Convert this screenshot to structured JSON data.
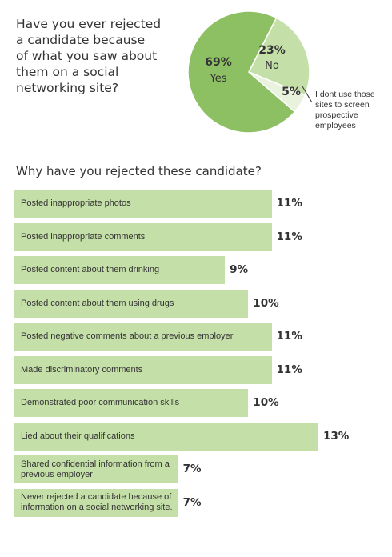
{
  "pie_section": {
    "question": "Have you ever rejected\na candidate because\nof what you saw about\nthem on a social\nnetworking site?",
    "colors": {
      "yes": "#8dc063",
      "no": "#c5dfa9",
      "other": "#e8f2dc",
      "border": "#ffffff"
    }
  },
  "bars_section": {
    "title": "Why have you rejected these candidate?",
    "bar_color": "#c5dfa9"
  },
  "chart_data": [
    {
      "type": "pie",
      "title": "Have you ever rejected a candidate because of what you saw about them on a social networking site?",
      "slices": [
        {
          "label": "Yes",
          "value": 69,
          "value_label": "69%"
        },
        {
          "label": "No",
          "value": 23,
          "value_label": "23%"
        },
        {
          "label": "I dont use those sites to screen prospective employees",
          "value": 5,
          "value_label": "5%"
        }
      ]
    },
    {
      "type": "bar",
      "orientation": "horizontal",
      "title": "Why have you rejected these candidate?",
      "categories": [
        "Posted inappropriate photos",
        "Posted inappropriate comments",
        "Posted content about them drinking",
        "Posted content about them using drugs",
        "Posted negative comments about a previous employer",
        "Made discriminatory comments",
        "Demonstrated poor communication skills",
        "Lied about their qualifications",
        "Shared confidential information from a previous employer",
        "Never rejected a candidate because of information on a social networking site."
      ],
      "values": [
        11,
        11,
        9,
        10,
        11,
        11,
        10,
        13,
        7,
        7
      ],
      "value_labels": [
        "11%",
        "11%",
        "9%",
        "10%",
        "11%",
        "11%",
        "10%",
        "13%",
        "7%",
        "7%"
      ],
      "xlim": [
        0,
        13
      ]
    }
  ]
}
